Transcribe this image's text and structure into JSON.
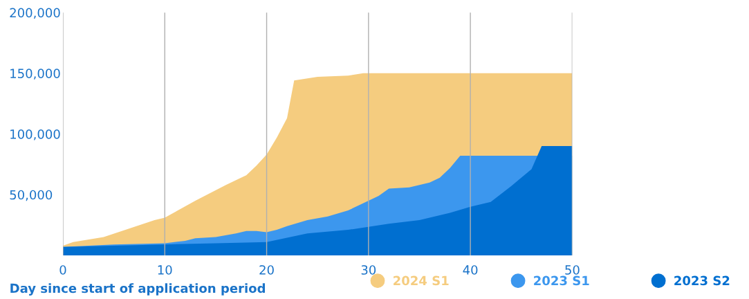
{
  "chart_data": {
    "type": "area",
    "xlabel": "Day since start of application period",
    "xlim": [
      0,
      50
    ],
    "xticks": [
      0,
      10,
      20,
      30,
      40,
      50
    ],
    "ylim": [
      0,
      200000
    ],
    "yticks": [
      {
        "value": 50000,
        "label": "50,000"
      },
      {
        "value": 100000,
        "label": "100,000"
      },
      {
        "value": 150000,
        "label": "150,000"
      },
      {
        "value": 200000,
        "label": "200,000"
      }
    ],
    "grid": "x",
    "legend": "bottom right",
    "series": [
      {
        "name": "2024 S1",
        "color": "#f5cc7f",
        "x": [
          0,
          1,
          4,
          9,
          10,
          13,
          16,
          18,
          19,
          20,
          21,
          22,
          22.7,
          25,
          28,
          29.5,
          50
        ],
        "values": [
          8000,
          11000,
          15000,
          29000,
          31000,
          45000,
          58000,
          66000,
          74000,
          83000,
          97000,
          113000,
          144000,
          147000,
          148000,
          150000,
          150000
        ]
      },
      {
        "name": "2023 S1",
        "color": "#3c97ee",
        "x": [
          0,
          5,
          10,
          12,
          13,
          15,
          17,
          18,
          19,
          20,
          21,
          22,
          24,
          26,
          28,
          30,
          31,
          32,
          34,
          36,
          37,
          38,
          39,
          46,
          50
        ],
        "values": [
          7000,
          9000,
          10000,
          12000,
          14000,
          15000,
          18000,
          20000,
          20000,
          19000,
          21000,
          24000,
          29000,
          32000,
          37000,
          45000,
          49000,
          55000,
          56000,
          60000,
          64000,
          72000,
          82000,
          82000,
          82000
        ]
      },
      {
        "name": "2023 S2",
        "color": "#006fd0",
        "x": [
          0,
          10,
          15,
          20,
          24,
          28,
          32,
          35,
          38,
          40,
          42,
          44,
          46,
          47,
          50
        ],
        "values": [
          7000,
          9000,
          10000,
          11000,
          18000,
          21000,
          26000,
          29000,
          35000,
          40000,
          44000,
          57000,
          71000,
          90000,
          90000
        ]
      }
    ]
  }
}
